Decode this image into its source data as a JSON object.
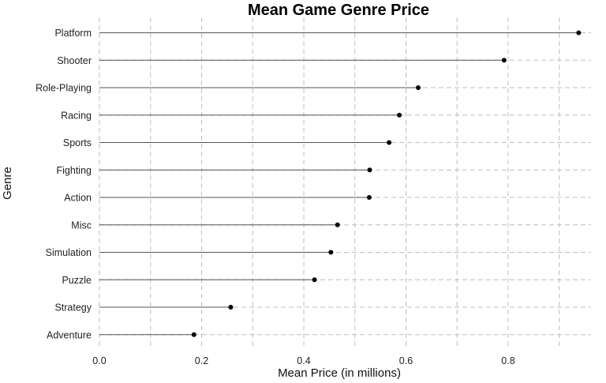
{
  "chart_data": {
    "type": "lollipop",
    "title": "Mean Game Genre Price",
    "xlabel": "Mean Price (in millions)",
    "ylabel": "Genre",
    "xlim": [
      0,
      0.9
    ],
    "x_ticks": [
      "0.0",
      "0.2",
      "0.4",
      "0.6",
      "0.8"
    ],
    "x_tick_values": [
      0.0,
      0.2,
      0.4,
      0.6,
      0.8
    ],
    "grid": true,
    "categories": [
      "Platform",
      "Shooter",
      "Role-Playing",
      "Racing",
      "Sports",
      "Fighting",
      "Action",
      "Misc",
      "Simulation",
      "Puzzle",
      "Strategy",
      "Adventure"
    ],
    "values": [
      0.938,
      0.792,
      0.624,
      0.587,
      0.567,
      0.529,
      0.528,
      0.466,
      0.453,
      0.421,
      0.257,
      0.185
    ]
  }
}
